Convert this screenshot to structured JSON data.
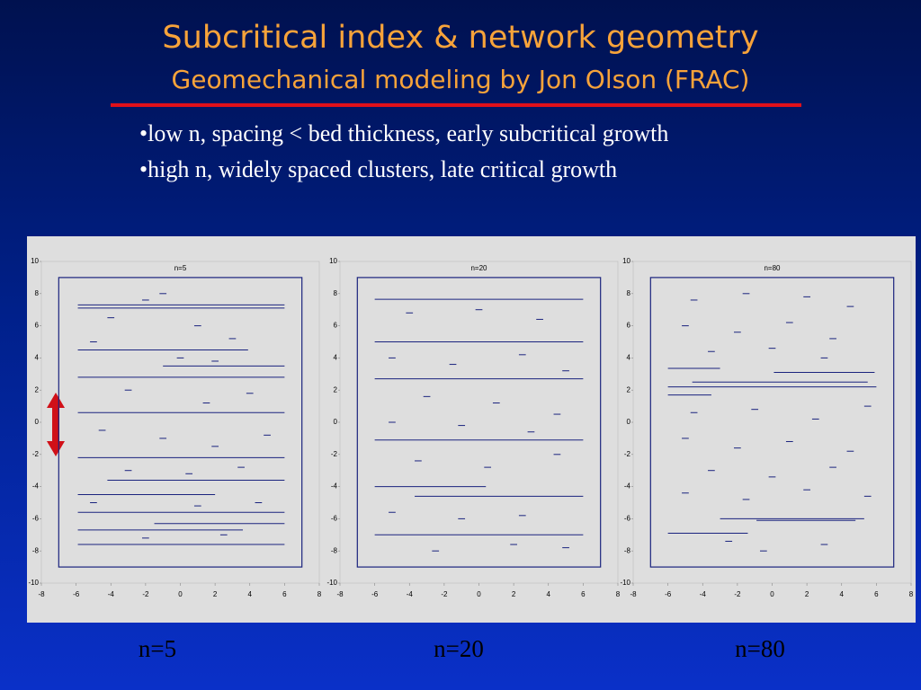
{
  "header": {
    "title": "Subcritical index & network geometry",
    "subtitle": "Geomechanical modeling by Jon Olson (FRAC)"
  },
  "bullets": [
    "•low n, spacing < bed thickness, early subcritical growth",
    "•high n, widely spaced clusters, late critical growth"
  ],
  "captions": [
    "n=5",
    "n=20",
    "n=80"
  ],
  "charts": [
    {
      "type": "segments",
      "title": "n=5",
      "xlim": [
        -8,
        8
      ],
      "ylim": [
        -10,
        10
      ],
      "xticks": [
        -8,
        -6,
        -4,
        -2,
        0,
        2,
        4,
        6,
        8
      ],
      "yticks": [
        -10,
        -8,
        -6,
        -4,
        -2,
        0,
        2,
        4,
        6,
        8,
        10
      ],
      "bounds": {
        "x": [
          -7,
          7
        ],
        "y": [
          -9,
          9
        ]
      },
      "color": "#1a237e",
      "segments": [
        [
          -5.9,
          6,
          7.3
        ],
        [
          -5.9,
          6,
          7.1
        ],
        [
          -5.9,
          3.9,
          4.5
        ],
        [
          -1,
          6,
          3.5
        ],
        [
          -5.9,
          6,
          2.8
        ],
        [
          -5.9,
          6,
          0.6
        ],
        [
          -5.9,
          6,
          -2.2
        ],
        [
          -4.2,
          6,
          -3.6
        ],
        [
          -5.9,
          2,
          -4.5
        ],
        [
          -5.9,
          6,
          -5.6
        ],
        [
          -1.5,
          6,
          -6.3
        ],
        [
          -5.9,
          3.6,
          -6.7
        ],
        [
          -5.9,
          6,
          -7.6
        ],
        [
          -4.2,
          -3.8,
          6.5
        ],
        [
          -2.2,
          -1.8,
          7.6
        ],
        [
          0.8,
          1.2,
          6
        ],
        [
          2.8,
          3.2,
          5.2
        ],
        [
          -5.2,
          -4.8,
          5
        ],
        [
          -0.2,
          0.2,
          4
        ],
        [
          1.8,
          2.2,
          3.8
        ],
        [
          -3.2,
          -2.8,
          2
        ],
        [
          1.3,
          1.7,
          1.2
        ],
        [
          3.8,
          4.2,
          1.8
        ],
        [
          -4.7,
          -4.3,
          -0.5
        ],
        [
          -1.2,
          -0.8,
          -1
        ],
        [
          1.8,
          2.2,
          -1.5
        ],
        [
          4.8,
          5.2,
          -0.8
        ],
        [
          -3.2,
          -2.8,
          -3
        ],
        [
          0.3,
          0.7,
          -3.2
        ],
        [
          3.3,
          3.7,
          -2.8
        ],
        [
          -5.2,
          -4.8,
          -5
        ],
        [
          0.8,
          1.2,
          -5.2
        ],
        [
          4.3,
          4.7,
          -5
        ],
        [
          -2.2,
          -1.8,
          -7.2
        ],
        [
          2.3,
          2.7,
          -7
        ],
        [
          -1.2,
          -0.8,
          8
        ]
      ]
    },
    {
      "type": "segments",
      "title": "n=20",
      "xlim": [
        -8,
        8
      ],
      "ylim": [
        -10,
        10
      ],
      "xticks": [
        -8,
        -6,
        -4,
        -2,
        0,
        2,
        4,
        6,
        8
      ],
      "yticks": [
        -10,
        -8,
        -6,
        -4,
        -2,
        0,
        2,
        4,
        6,
        8,
        10
      ],
      "bounds": {
        "x": [
          -7,
          7
        ],
        "y": [
          -9,
          9
        ]
      },
      "color": "#1a237e",
      "segments": [
        [
          -6,
          6,
          7.65
        ],
        [
          -6,
          6,
          5
        ],
        [
          -6,
          6,
          2.7
        ],
        [
          -6,
          6,
          -1.1
        ],
        [
          -6,
          0.4,
          -4
        ],
        [
          -3.7,
          6,
          -4.6
        ],
        [
          -6,
          6,
          -7
        ],
        [
          -4.2,
          -3.8,
          6.8
        ],
        [
          -0.2,
          0.2,
          7
        ],
        [
          3.3,
          3.7,
          6.4
        ],
        [
          -5.2,
          -4.8,
          4
        ],
        [
          -1.7,
          -1.3,
          3.6
        ],
        [
          2.3,
          2.7,
          4.2
        ],
        [
          4.8,
          5.2,
          3.2
        ],
        [
          -3.2,
          -2.8,
          1.6
        ],
        [
          0.8,
          1.2,
          1.2
        ],
        [
          4.3,
          4.7,
          0.5
        ],
        [
          -5.2,
          -4.8,
          0
        ],
        [
          -1.2,
          -0.8,
          -0.2
        ],
        [
          2.8,
          3.2,
          -0.6
        ],
        [
          -3.7,
          -3.3,
          -2.4
        ],
        [
          0.3,
          0.7,
          -2.8
        ],
        [
          4.3,
          4.7,
          -2
        ],
        [
          -5.2,
          -4.8,
          -5.6
        ],
        [
          -1.2,
          -0.8,
          -6
        ],
        [
          2.3,
          2.7,
          -5.8
        ],
        [
          -2.7,
          -2.3,
          -8
        ],
        [
          1.8,
          2.2,
          -7.6
        ],
        [
          4.8,
          5.2,
          -7.8
        ]
      ]
    },
    {
      "type": "segments",
      "title": "n=80",
      "xlim": [
        -8,
        8
      ],
      "ylim": [
        -10,
        10
      ],
      "xticks": [
        -8,
        -6,
        -4,
        -2,
        0,
        2,
        4,
        6,
        8
      ],
      "yticks": [
        -10,
        -8,
        -6,
        -4,
        -2,
        0,
        2,
        4,
        6,
        8,
        10
      ],
      "bounds": {
        "x": [
          -7,
          7
        ],
        "y": [
          -9,
          9
        ]
      },
      "color": "#1a237e",
      "segments": [
        [
          -6,
          -3,
          3.35
        ],
        [
          0.1,
          5.9,
          3.1
        ],
        [
          -4.6,
          5.5,
          2.5
        ],
        [
          -6,
          6,
          2.2
        ],
        [
          -6,
          -3.5,
          1.7
        ],
        [
          -3,
          5.3,
          -6
        ],
        [
          -0.9,
          4.8,
          -6.1
        ],
        [
          -6,
          -1.4,
          -6.9
        ],
        [
          -4.7,
          -4.3,
          7.6
        ],
        [
          -1.7,
          -1.3,
          8
        ],
        [
          1.8,
          2.2,
          7.8
        ],
        [
          4.3,
          4.7,
          7.2
        ],
        [
          -5.2,
          -4.8,
          6
        ],
        [
          -2.2,
          -1.8,
          5.6
        ],
        [
          0.8,
          1.2,
          6.2
        ],
        [
          3.3,
          3.7,
          5.2
        ],
        [
          -3.7,
          -3.3,
          4.4
        ],
        [
          -0.2,
          0.2,
          4.6
        ],
        [
          2.8,
          3.2,
          4
        ],
        [
          -4.7,
          -4.3,
          0.6
        ],
        [
          -1.2,
          -0.8,
          0.8
        ],
        [
          2.3,
          2.7,
          0.2
        ],
        [
          5.3,
          5.7,
          1
        ],
        [
          -5.2,
          -4.8,
          -1
        ],
        [
          -2.2,
          -1.8,
          -1.6
        ],
        [
          0.8,
          1.2,
          -1.2
        ],
        [
          4.3,
          4.7,
          -1.8
        ],
        [
          -3.7,
          -3.3,
          -3
        ],
        [
          -0.2,
          0.2,
          -3.4
        ],
        [
          3.3,
          3.7,
          -2.8
        ],
        [
          -5.2,
          -4.8,
          -4.4
        ],
        [
          -1.7,
          -1.3,
          -4.8
        ],
        [
          1.8,
          2.2,
          -4.2
        ],
        [
          5.3,
          5.7,
          -4.6
        ],
        [
          -2.7,
          -2.3,
          -7.4
        ],
        [
          2.8,
          3.2,
          -7.6
        ],
        [
          -0.7,
          -0.3,
          -8
        ]
      ]
    }
  ]
}
